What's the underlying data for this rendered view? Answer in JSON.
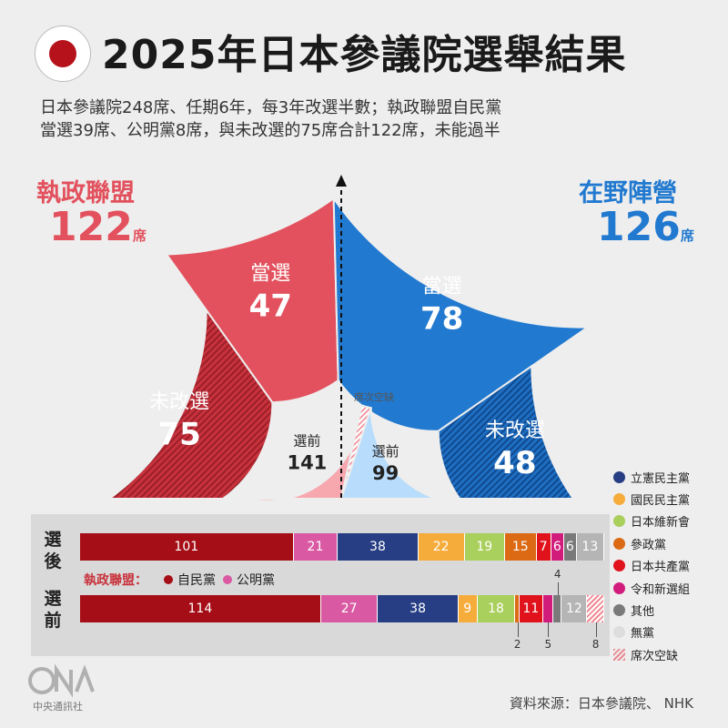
{
  "header": {
    "title": "2025年日本參議院選舉結果",
    "subtitle_line1": "日本參議院248席、任期6年，每3年改選半數；執政聯盟自民黨",
    "subtitle_line2": "當選39席、公明黨8席，與未改選的75席合計122席，未能過半"
  },
  "ruling": {
    "label": "執政聯盟",
    "total": "122",
    "unit": "席"
  },
  "opposition": {
    "label": "在野陣營",
    "total": "126",
    "unit": "席"
  },
  "colors": {
    "ruling": "#e2515d",
    "ruling_dark": "#c8323c",
    "opposition": "#2179d0",
    "ruling_prev": "#f7a7ae",
    "opposition_prev": "#b8dcfb"
  },
  "chart_data": [
    {
      "type": "pie",
      "title": "2025年日本參議院選舉結果",
      "outer_ring": [
        {
          "group": "執政聯盟",
          "name": "未改選",
          "value": 75
        },
        {
          "group": "執政聯盟",
          "name": "當選",
          "value": 47
        },
        {
          "group": "在野陣營",
          "name": "當選",
          "value": 78
        },
        {
          "group": "在野陣營",
          "name": "未改選",
          "value": 48
        }
      ],
      "inner_ring": [
        {
          "group": "執政聯盟",
          "name": "選前",
          "value": 141
        },
        {
          "name": "席次空缺",
          "value": 8
        },
        {
          "group": "在野陣營",
          "name": "選前",
          "value": 99
        }
      ],
      "total_seats": 248
    },
    {
      "type": "bar",
      "stacked": true,
      "orientation": "horizontal",
      "rows": [
        {
          "label": "選後",
          "segments": [
            {
              "party": "自民黨",
              "value": 101,
              "color": "#a50e16",
              "label": "101"
            },
            {
              "party": "公明黨",
              "value": 21,
              "color": "#d95aa3",
              "label": "21"
            },
            {
              "party": "立憲民主黨",
              "value": 38,
              "color": "#273e84",
              "label": "38"
            },
            {
              "party": "國民民主黨",
              "value": 22,
              "color": "#f6ac3b",
              "label": "22"
            },
            {
              "party": "日本維新會",
              "value": 19,
              "color": "#a9cf5c",
              "label": "19"
            },
            {
              "party": "參政黨",
              "value": 15,
              "color": "#dc6a14",
              "label": "15"
            },
            {
              "party": "日本共產黨",
              "value": 7,
              "color": "#e0121c",
              "label": "7"
            },
            {
              "party": "令和新選組",
              "value": 6,
              "color": "#d21c7c",
              "label": "6"
            },
            {
              "party": "其他",
              "value": 6,
              "color": "#7a7a7a",
              "label": "6"
            },
            {
              "party": "無黨",
              "value": 13,
              "color": "#b5b5b5",
              "label": "13"
            }
          ]
        },
        {
          "label": "選前",
          "segments": [
            {
              "party": "自民黨",
              "value": 114,
              "color": "#a50e16",
              "label": "114"
            },
            {
              "party": "公明黨",
              "value": 27,
              "color": "#d95aa3",
              "label": "27"
            },
            {
              "party": "立憲民主黨",
              "value": 38,
              "color": "#273e84",
              "label": "38"
            },
            {
              "party": "國民民主黨",
              "value": 9,
              "color": "#f6ac3b",
              "label": "9"
            },
            {
              "party": "日本維新會",
              "value": 18,
              "color": "#a9cf5c",
              "label": "18"
            },
            {
              "party": "參政黨",
              "value": 2,
              "color": "#dc6a14",
              "label": ""
            },
            {
              "party": "日本共產黨",
              "value": 11,
              "color": "#e0121c",
              "label": "11"
            },
            {
              "party": "令和新選組",
              "value": 5,
              "color": "#d21c7c",
              "label": ""
            },
            {
              "party": "其他",
              "value": 4,
              "color": "#7a7a7a",
              "label": ""
            },
            {
              "party": "無黨",
              "value": 12,
              "color": "#b5b5b5",
              "label": "12"
            },
            {
              "party": "席次空缺",
              "value": 8,
              "color": "hatch",
              "label": ""
            }
          ]
        }
      ],
      "callouts": [
        "2",
        "5",
        "4",
        "8"
      ]
    }
  ],
  "bars": {
    "after_label": "選後",
    "before_label": "選前",
    "coalition_label": "執政聯盟：",
    "ldp": "自民黨",
    "komeito": "公明黨"
  },
  "legend": [
    {
      "name": "立憲民主黨",
      "color": "#273e84"
    },
    {
      "name": "國民民主黨",
      "color": "#f6ac3b"
    },
    {
      "name": "日本維新會",
      "color": "#a9cf5c"
    },
    {
      "name": "參政黨",
      "color": "#dc6a14"
    },
    {
      "name": "日本共產黨",
      "color": "#e0121c"
    },
    {
      "name": "令和新選組",
      "color": "#d21c7c"
    },
    {
      "name": "其他",
      "color": "#7a7a7a"
    },
    {
      "name": "無黨",
      "color": "#dddddd"
    },
    {
      "name": "席次空缺",
      "color": "hatch"
    }
  ],
  "footer": {
    "logo_text": "中央通訊社",
    "source": "資料來源：日本參議院、 NHK"
  }
}
